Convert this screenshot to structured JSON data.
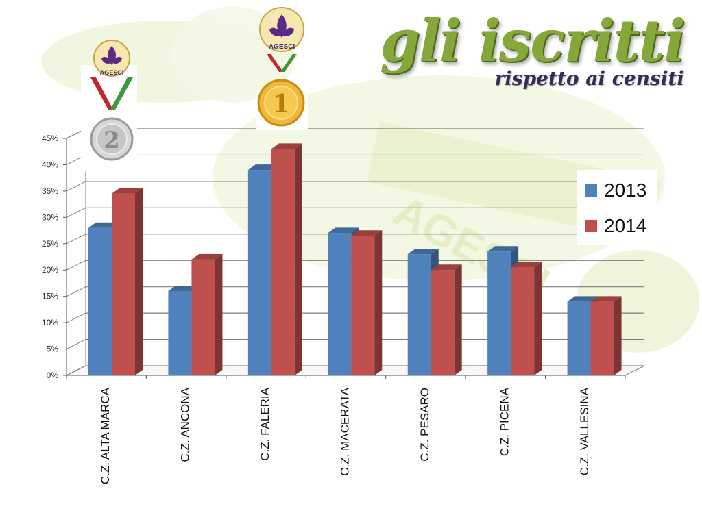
{
  "title": {
    "main": "gli iscritti",
    "sub": "rispetto ai censiti"
  },
  "badges": [
    {
      "rank": "2",
      "banner": "AGESCI"
    },
    {
      "rank": "1",
      "banner": "AGESCI"
    }
  ],
  "colors": {
    "s2013": "#4f81bd",
    "s2014": "#c0504d",
    "gridline": "#7f7f7f",
    "title_green": "#86a83a"
  },
  "chart_data": {
    "type": "bar",
    "categories": [
      "C.Z. ALTA MARCA",
      "C.Z. ANCONA",
      "C.Z. FALERIA",
      "C.Z. MACERATA",
      "C.Z. PESARO",
      "C.Z. PICENA",
      "C.Z. VALLESINA"
    ],
    "series": [
      {
        "name": "2013",
        "values": [
          28,
          16,
          39,
          27,
          23,
          23.5,
          14
        ]
      },
      {
        "name": "2014",
        "values": [
          34.5,
          22,
          43,
          26.5,
          20,
          20.5,
          14
        ]
      }
    ],
    "ylim": [
      0,
      45
    ],
    "yticks": [
      "0%",
      "5%",
      "10%",
      "15%",
      "20%",
      "25%",
      "30%",
      "35%",
      "40%",
      "45%"
    ],
    "grid": true,
    "legend": "right"
  }
}
